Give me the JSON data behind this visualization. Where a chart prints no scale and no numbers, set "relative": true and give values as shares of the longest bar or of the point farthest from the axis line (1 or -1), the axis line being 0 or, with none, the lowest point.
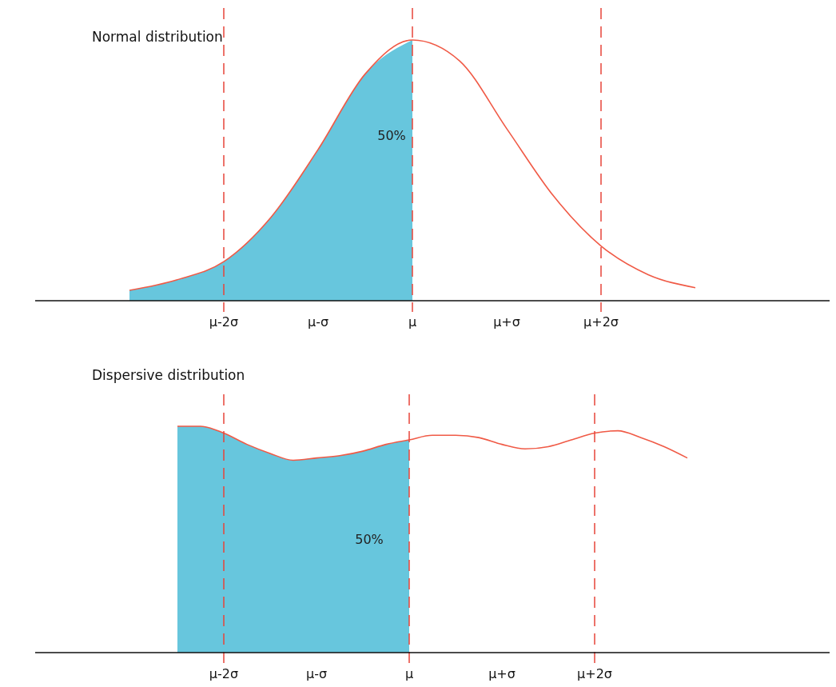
{
  "chart_data": [
    {
      "type": "line",
      "title": "Normal distribution",
      "relative": true,
      "categories": [
        null,
        null,
        "μ-2σ",
        null,
        "μ-σ",
        null,
        "μ",
        null,
        "μ+σ",
        null,
        "μ+2σ",
        null,
        null
      ],
      "series": [
        {
          "type": "area",
          "color": "#67c6dd",
          "values": [
            0.04,
            0.08,
            0.15,
            0.32,
            0.58,
            0.87,
            1,
            null,
            null,
            null,
            null,
            null,
            null
          ]
        },
        {
          "color": "#f05a46",
          "values": [
            0.04,
            0.08,
            0.15,
            0.32,
            0.58,
            0.87,
            1,
            0.92,
            0.66,
            0.4,
            0.21,
            0.1,
            0.05
          ]
        }
      ],
      "ref_lines": [
        {
          "axis": "x",
          "value": "μ-2σ",
          "color": "#e8443a",
          "line_style": "dashed"
        },
        {
          "axis": "x",
          "value": "μ",
          "color": "#e8443a",
          "line_style": "dashed"
        },
        {
          "axis": "x",
          "value": "μ+2σ",
          "color": "#e8443a",
          "line_style": "dashed"
        }
      ],
      "annotations": [
        "50%"
      ]
    },
    {
      "type": "line",
      "title": "Dispersive distribution",
      "relative": true,
      "categories": [
        null,
        null,
        "μ-2σ",
        null,
        null,
        null,
        "μ-σ",
        null,
        null,
        null,
        "μ",
        null,
        null,
        null,
        "μ+σ",
        null,
        null,
        null,
        "μ+2σ",
        null,
        null,
        null,
        null
      ],
      "series": [
        {
          "type": "area",
          "color": "#67c6dd",
          "values": [
            1,
            1,
            0.97,
            0.92,
            0.88,
            0.85,
            0.86,
            0.87,
            0.89,
            0.92,
            0.94,
            null,
            null,
            null,
            null,
            null,
            null,
            null,
            null,
            null,
            null,
            null,
            null
          ]
        },
        {
          "color": "#f05a46",
          "values": [
            1,
            1,
            0.97,
            0.92,
            0.88,
            0.85,
            0.86,
            0.87,
            0.89,
            0.92,
            0.94,
            0.96,
            0.96,
            0.95,
            0.92,
            0.9,
            0.91,
            0.94,
            0.97,
            0.98,
            0.95,
            0.91,
            0.86
          ]
        }
      ],
      "ref_lines": [
        {
          "axis": "x",
          "value": "μ-2σ",
          "color": "#e8443a",
          "line_style": "dashed"
        },
        {
          "axis": "x",
          "value": "μ",
          "color": "#e8443a",
          "line_style": "dashed"
        },
        {
          "axis": "x",
          "value": "μ+2σ",
          "color": "#e8443a",
          "line_style": "dashed"
        }
      ],
      "annotations": [
        "50%"
      ]
    }
  ]
}
